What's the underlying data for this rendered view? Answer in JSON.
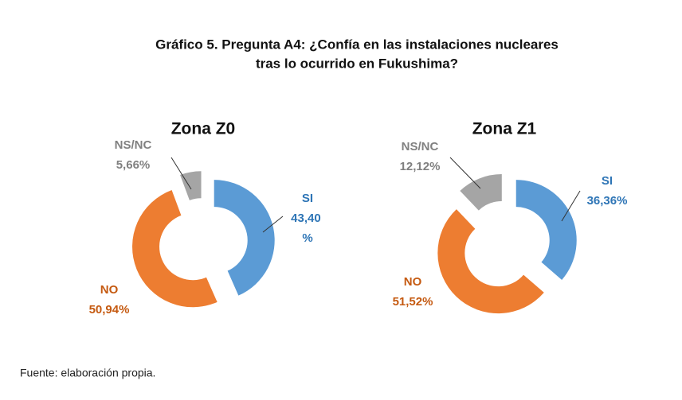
{
  "title": [
    "Gráfico 5. Pregunta A4: ¿Confía en las instalaciones nucleares",
    "tras lo ocurrido en Fukushima?"
  ],
  "source": "Fuente: elaboración propia.",
  "chart_data": [
    {
      "type": "pie",
      "donut": true,
      "title": "Zona Z0",
      "categories": [
        "SI",
        "NO",
        "NS/NC"
      ],
      "values": [
        43.4,
        50.94,
        5.66
      ],
      "value_labels": [
        "43,40 %",
        "50,94%",
        "5,66%"
      ],
      "colors": [
        "#5b9bd5",
        "#ed7d31",
        "#a5a5a5"
      ],
      "label_colors": [
        "#2e75b6",
        "#c55a11",
        "#808080"
      ]
    },
    {
      "type": "pie",
      "donut": true,
      "title": "Zona Z1",
      "categories": [
        "SI",
        "NO",
        "NS/NC"
      ],
      "values": [
        36.36,
        51.52,
        12.12
      ],
      "value_labels": [
        "36,36%",
        "51,52%",
        "12,12%"
      ],
      "colors": [
        "#5b9bd5",
        "#ed7d31",
        "#a5a5a5"
      ],
      "label_colors": [
        "#2e75b6",
        "#c55a11",
        "#808080"
      ]
    }
  ]
}
